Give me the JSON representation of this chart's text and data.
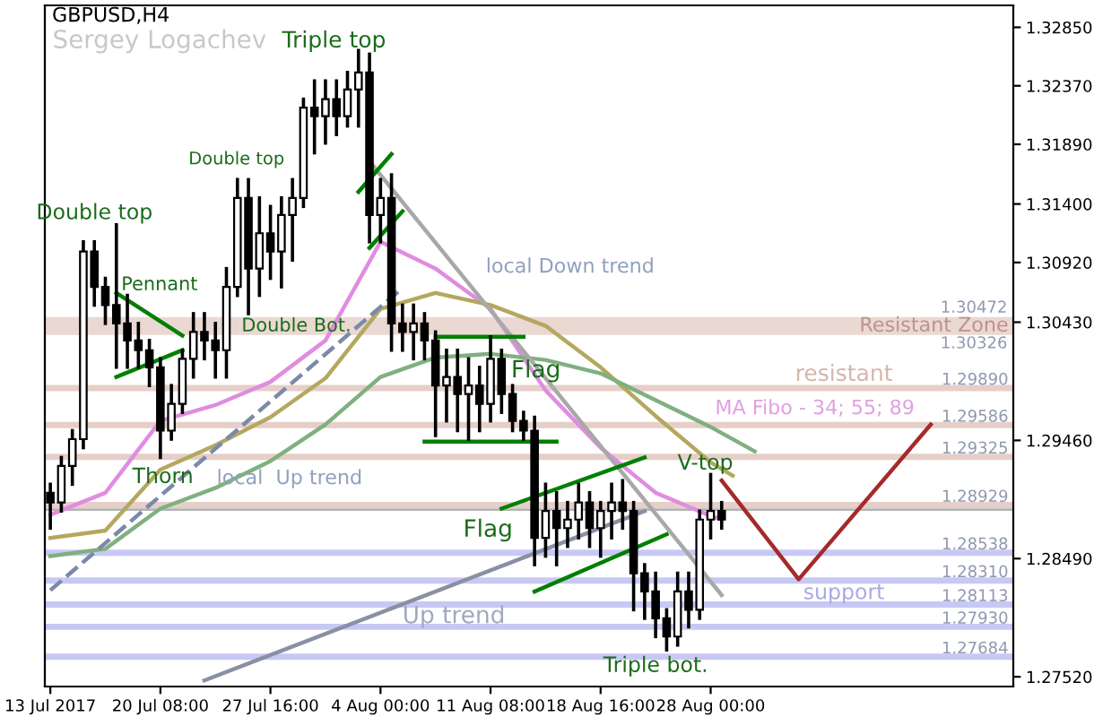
{
  "chart_data": {
    "type": "candlestick",
    "title": "GBPUSD,H4",
    "color": "#000000",
    "categories": [
      "13 Jul 2017",
      null,
      null,
      null,
      null,
      null,
      null,
      null,
      null,
      null,
      "20 Jul 08:00",
      null,
      null,
      null,
      null,
      null,
      null,
      null,
      null,
      null,
      "27 Jul 16:00",
      null,
      null,
      null,
      null,
      null,
      null,
      null,
      null,
      null,
      "4 Aug 00:00",
      null,
      null,
      null,
      null,
      null,
      null,
      null,
      null,
      null,
      "11 Aug 08:00",
      null,
      null,
      null,
      null,
      null,
      null,
      null,
      null,
      null,
      "18 Aug 16:00",
      null,
      null,
      null,
      null,
      null,
      null,
      null,
      null,
      null,
      "28 Aug 00:00",
      null,
      null,
      null,
      null,
      null,
      null,
      null,
      null,
      null,
      null,
      null,
      null,
      null,
      null,
      null,
      null,
      null,
      null,
      null,
      null,
      null,
      null,
      null,
      null,
      null,
      null,
      null
    ],
    "ohlc": [
      [
        1.2903,
        1.291,
        1.2874,
        1.2895
      ],
      [
        1.2895,
        1.2932,
        1.2888,
        1.2925
      ],
      [
        1.2925,
        1.2954,
        1.291,
        1.2947
      ],
      [
        1.2947,
        1.3109,
        1.294,
        1.3101
      ],
      [
        1.3101,
        1.3109,
        1.3057,
        1.3072
      ],
      [
        1.3072,
        1.3079,
        1.3042,
        1.3057
      ],
      [
        1.3057,
        1.3123,
        1.3006,
        1.3042
      ],
      [
        1.3042,
        1.3065,
        1.3006,
        1.3028
      ],
      [
        1.3028,
        1.3042,
        1.3006,
        1.302
      ],
      [
        1.302,
        1.3028,
        1.2991,
        1.3006
      ],
      [
        1.3006,
        1.3013,
        1.2932,
        1.2954
      ],
      [
        1.2954,
        1.2991,
        1.2947,
        1.2976
      ],
      [
        1.2976,
        1.302,
        1.2969,
        1.3013
      ],
      [
        1.3013,
        1.305,
        1.2998,
        1.3035
      ],
      [
        1.3035,
        1.305,
        1.3013,
        1.3028
      ],
      [
        1.3028,
        1.3042,
        1.2998,
        1.302
      ],
      [
        1.302,
        1.3087,
        1.2998,
        1.3072
      ],
      [
        1.3072,
        1.316,
        1.3065,
        1.3145
      ],
      [
        1.3145,
        1.316,
        1.305,
        1.3087
      ],
      [
        1.3087,
        1.3145,
        1.3065,
        1.3116
      ],
      [
        1.3116,
        1.3138,
        1.3079,
        1.3101
      ],
      [
        1.3101,
        1.3145,
        1.3072,
        1.3131
      ],
      [
        1.3131,
        1.316,
        1.3094,
        1.3145
      ],
      [
        1.3145,
        1.3226,
        1.3138,
        1.3219
      ],
      [
        1.3219,
        1.3241,
        1.3182,
        1.3212
      ],
      [
        1.3212,
        1.3241,
        1.319,
        1.3226
      ],
      [
        1.3226,
        1.3241,
        1.3197,
        1.3212
      ],
      [
        1.3212,
        1.3248,
        1.3204,
        1.3234
      ],
      [
        1.3234,
        1.3266,
        1.3204,
        1.3248
      ],
      [
        1.3248,
        1.3263,
        1.3109,
        1.3131
      ],
      [
        1.3131,
        1.316,
        1.3109,
        1.3145
      ],
      [
        1.3145,
        1.3164,
        1.302,
        1.3042
      ],
      [
        1.3042,
        1.3057,
        1.302,
        1.3035
      ],
      [
        1.3035,
        1.3057,
        1.3013,
        1.3042
      ],
      [
        1.3042,
        1.305,
        1.3013,
        1.3028
      ],
      [
        1.3028,
        1.3035,
        1.295,
        1.2991
      ],
      [
        1.2991,
        1.302,
        1.2962,
        1.2998
      ],
      [
        1.2998,
        1.302,
        1.2954,
        1.2984
      ],
      [
        1.2984,
        1.3013,
        1.2947,
        1.2991
      ],
      [
        1.2991,
        1.3006,
        1.2954,
        1.2976
      ],
      [
        1.2976,
        1.3031,
        1.2962,
        1.3013
      ],
      [
        1.3013,
        1.302,
        1.2969,
        1.2984
      ],
      [
        1.2984,
        1.2991,
        1.2954,
        1.2962
      ],
      [
        1.2962,
        1.2969,
        1.2947,
        1.2954
      ],
      [
        1.2954,
        1.2965,
        1.2844,
        1.2866
      ],
      [
        1.2866,
        1.291,
        1.2851,
        1.2888
      ],
      [
        1.2888,
        1.2903,
        1.2844,
        1.2874
      ],
      [
        1.2874,
        1.2895,
        1.2859,
        1.2881
      ],
      [
        1.2881,
        1.291,
        1.2866,
        1.2895
      ],
      [
        1.2895,
        1.2903,
        1.2859,
        1.2874
      ],
      [
        1.2874,
        1.2895,
        1.2851,
        1.2888
      ],
      [
        1.2888,
        1.291,
        1.2866,
        1.2895
      ],
      [
        1.2895,
        1.2913,
        1.2874,
        1.2888
      ],
      [
        1.2888,
        1.2895,
        1.2807,
        1.2837
      ],
      [
        1.2837,
        1.2844,
        1.28,
        1.2822
      ],
      [
        1.2822,
        1.2837,
        1.2785,
        1.28
      ],
      [
        1.28,
        1.2807,
        1.2774,
        1.2785
      ],
      [
        1.2785,
        1.2837,
        1.2778,
        1.2822
      ],
      [
        1.2822,
        1.2837,
        1.2793,
        1.2807
      ],
      [
        1.2807,
        1.2888,
        1.28,
        1.2881
      ],
      [
        1.2881,
        1.2918,
        1.2866,
        1.2888
      ],
      [
        1.2888,
        1.2895,
        1.2874,
        1.2881
      ],
      null,
      null,
      null,
      null,
      null,
      null,
      null,
      null,
      null,
      null,
      null,
      null,
      null,
      null,
      null,
      null,
      null,
      null,
      null,
      null,
      null,
      null,
      null,
      null,
      null,
      null
    ],
    "series": [
      {
        "type": "line",
        "color": "#e08ce0",
        "line_style": "solid",
        "values": [
          1.2885,
          null,
          null,
          null,
          null,
          1.2903,
          null,
          null,
          null,
          null,
          1.2962,
          null,
          null,
          null,
          null,
          1.2975,
          null,
          null,
          null,
          null,
          1.2994,
          null,
          null,
          null,
          null,
          1.3028,
          null,
          null,
          null,
          null,
          1.3109,
          null,
          null,
          null,
          null,
          1.3087,
          null,
          null,
          null,
          null,
          1.3054,
          null,
          null,
          null,
          null,
          1.2987,
          null,
          null,
          null,
          null,
          1.294,
          null,
          null,
          null,
          null,
          1.2903,
          null,
          null,
          null,
          null,
          1.2884,
          1.2881,
          null,
          null,
          null,
          null,
          null,
          null,
          null,
          null,
          null,
          null,
          null,
          null,
          null,
          null,
          null,
          null,
          null,
          null,
          null,
          null,
          null,
          null,
          null,
          null,
          null,
          null
        ]
      },
      {
        "type": "line",
        "color": "#b4a860",
        "line_style": "solid",
        "values": [
          1.2866,
          null,
          null,
          null,
          null,
          1.2872,
          null,
          null,
          null,
          null,
          1.2922,
          null,
          null,
          null,
          null,
          1.2942,
          null,
          null,
          null,
          null,
          1.2965,
          null,
          null,
          null,
          null,
          1.2997,
          null,
          null,
          null,
          null,
          1.3054,
          null,
          null,
          null,
          null,
          1.3067,
          null,
          null,
          null,
          null,
          1.3057,
          null,
          null,
          null,
          null,
          1.304,
          null,
          null,
          null,
          null,
          1.3006,
          null,
          null,
          null,
          null,
          1.2966,
          null,
          null,
          null,
          null,
          1.2928,
          null,
          1.2917,
          null,
          null,
          null,
          null,
          null,
          null,
          null,
          null,
          null,
          null,
          null,
          null,
          null,
          null,
          null,
          null,
          null,
          null,
          null,
          null,
          null,
          null,
          null,
          null,
          null
        ]
      },
      {
        "type": "line",
        "color": "#80b080",
        "line_style": "solid",
        "values": [
          1.2851,
          null,
          null,
          null,
          null,
          1.2857,
          null,
          null,
          null,
          null,
          1.289,
          null,
          null,
          null,
          null,
          1.2907,
          null,
          null,
          null,
          null,
          1.2929,
          null,
          null,
          null,
          null,
          1.2959,
          null,
          null,
          null,
          null,
          1.2998,
          null,
          null,
          null,
          null,
          1.3014,
          null,
          null,
          null,
          null,
          1.3017,
          null,
          null,
          null,
          null,
          1.3012,
          null,
          null,
          null,
          null,
          1.3001,
          null,
          null,
          null,
          null,
          1.2979,
          null,
          null,
          null,
          null,
          1.2957,
          null,
          null,
          null,
          1.2937,
          null,
          null,
          null,
          null,
          null,
          null,
          null,
          null,
          null,
          null,
          null,
          null,
          null,
          null,
          null,
          null,
          null,
          null,
          null,
          null,
          null,
          null,
          null
        ]
      },
      {
        "type": "line",
        "color": "#7a8aa8",
        "line_style": "dashed",
        "values": [
          1.2823,
          null,
          null,
          null,
          null,
          null,
          null,
          null,
          null,
          null,
          null,
          null,
          null,
          null,
          null,
          null,
          null,
          null,
          null,
          null,
          null,
          null,
          null,
          null,
          null,
          null,
          null,
          null,
          null,
          null,
          null,
          null,
          1.3071,
          null,
          null,
          null,
          null,
          null,
          null,
          null,
          null,
          null,
          null,
          null,
          null,
          null,
          null,
          null,
          null,
          null,
          null,
          null,
          null,
          null,
          null,
          null,
          null,
          null,
          null,
          null,
          null,
          null,
          null,
          null,
          null,
          null,
          null,
          null,
          null,
          null,
          null,
          null,
          null,
          null,
          null,
          null,
          null,
          null,
          null,
          null,
          null,
          null,
          null,
          null,
          null,
          null,
          null,
          null
        ]
      },
      {
        "type": "line",
        "color": "#a8a8a8",
        "line_style": "solid",
        "values": [
          null,
          null,
          null,
          null,
          null,
          null,
          null,
          null,
          null,
          null,
          null,
          null,
          null,
          null,
          null,
          null,
          null,
          null,
          null,
          null,
          null,
          null,
          null,
          null,
          null,
          null,
          null,
          null,
          null,
          1.3175,
          null,
          null,
          null,
          null,
          null,
          null,
          null,
          null,
          null,
          null,
          null,
          null,
          null,
          null,
          null,
          null,
          null,
          null,
          null,
          null,
          null,
          null,
          null,
          null,
          null,
          null,
          null,
          null,
          null,
          null,
          null,
          1.2819,
          null,
          null,
          null,
          null,
          null,
          null,
          null,
          null,
          null,
          null,
          null,
          null,
          null,
          null,
          null,
          null,
          null,
          null,
          null,
          null,
          null,
          null,
          null,
          null,
          null,
          null
        ]
      },
      {
        "type": "line",
        "color": "#8a90a4",
        "line_style": "solid",
        "values": [
          null,
          null,
          null,
          null,
          null,
          null,
          null,
          null,
          null,
          null,
          null,
          null,
          null,
          null,
          1.2749,
          null,
          null,
          null,
          null,
          null,
          null,
          null,
          null,
          null,
          null,
          null,
          null,
          null,
          null,
          null,
          null,
          null,
          null,
          null,
          null,
          null,
          null,
          null,
          null,
          null,
          null,
          null,
          null,
          null,
          null,
          null,
          null,
          null,
          null,
          null,
          null,
          null,
          null,
          null,
          1.2888,
          null,
          null,
          null,
          null,
          null,
          null,
          null,
          null,
          null,
          null,
          null,
          null,
          null,
          null,
          null,
          null,
          null,
          null,
          null,
          null,
          null,
          null,
          null,
          null,
          null,
          null,
          null,
          null,
          null,
          null,
          null,
          null,
          null
        ]
      },
      {
        "type": "line",
        "color": "#008000",
        "line_style": "solid",
        "values": [
          null,
          null,
          null,
          null,
          null,
          null,
          1.3067,
          null,
          null,
          null,
          null,
          null,
          1.3032,
          null,
          null,
          null,
          null,
          null,
          null,
          null,
          null,
          null,
          null,
          null,
          null,
          null,
          null,
          null,
          null,
          null,
          null,
          null,
          null,
          null,
          null,
          null,
          null,
          null,
          null,
          null,
          null,
          null,
          null,
          null,
          null,
          null,
          null,
          null,
          null,
          null,
          null,
          null,
          null,
          null,
          null,
          null,
          null,
          null,
          null,
          null,
          null,
          null,
          null,
          null,
          null,
          null,
          null,
          null,
          null,
          null,
          null,
          null,
          null,
          null,
          null,
          null,
          null,
          null,
          null,
          null,
          null,
          null,
          null,
          null,
          null,
          null,
          null,
          null
        ]
      },
      {
        "type": "line",
        "color": "#008000",
        "line_style": "solid",
        "values": [
          null,
          null,
          null,
          null,
          null,
          null,
          1.2998,
          null,
          null,
          null,
          null,
          null,
          1.302,
          null,
          null,
          null,
          null,
          null,
          null,
          null,
          null,
          null,
          null,
          null,
          null,
          null,
          null,
          null,
          null,
          null,
          null,
          null,
          null,
          null,
          null,
          null,
          null,
          null,
          null,
          null,
          null,
          null,
          null,
          null,
          null,
          null,
          null,
          null,
          null,
          null,
          null,
          null,
          null,
          null,
          null,
          null,
          null,
          null,
          null,
          null,
          null,
          null,
          null,
          null,
          null,
          null,
          null,
          null,
          null,
          null,
          null,
          null,
          null,
          null,
          null,
          null,
          null,
          null,
          null,
          null,
          null,
          null,
          null,
          null,
          null,
          null,
          null,
          null
        ]
      },
      {
        "type": "line",
        "color": "#008000",
        "line_style": "solid",
        "values": [
          null,
          null,
          null,
          null,
          null,
          null,
          null,
          null,
          null,
          null,
          null,
          null,
          null,
          null,
          null,
          null,
          null,
          null,
          null,
          null,
          null,
          null,
          null,
          null,
          null,
          null,
          null,
          null,
          1.315,
          null,
          null,
          1.3181,
          null,
          null,
          null,
          null,
          null,
          null,
          null,
          null,
          null,
          null,
          null,
          null,
          null,
          null,
          null,
          null,
          null,
          null,
          null,
          null,
          null,
          null,
          null,
          null,
          null,
          null,
          null,
          null,
          null,
          null,
          null,
          null,
          null,
          null,
          null,
          null,
          null,
          null,
          null,
          null,
          null,
          null,
          null,
          null,
          null,
          null,
          null,
          null,
          null,
          null,
          null,
          null,
          null,
          null,
          null,
          null
        ]
      },
      {
        "type": "line",
        "color": "#008000",
        "line_style": "solid",
        "values": [
          null,
          null,
          null,
          null,
          null,
          null,
          null,
          null,
          null,
          null,
          null,
          null,
          null,
          null,
          null,
          null,
          null,
          null,
          null,
          null,
          null,
          null,
          null,
          null,
          null,
          null,
          null,
          null,
          null,
          1.3104,
          null,
          null,
          1.3134,
          null,
          null,
          null,
          null,
          null,
          null,
          null,
          null,
          null,
          null,
          null,
          null,
          null,
          null,
          null,
          null,
          null,
          null,
          null,
          null,
          null,
          null,
          null,
          null,
          null,
          null,
          null,
          null,
          null,
          null,
          null,
          null,
          null,
          null,
          null,
          null,
          null,
          null,
          null,
          null,
          null,
          null,
          null,
          null,
          null,
          null,
          null,
          null,
          null,
          null,
          null,
          null,
          null,
          null,
          null
        ]
      },
      {
        "type": "line",
        "color": "#008000",
        "line_style": "solid",
        "values": [
          null,
          null,
          null,
          null,
          null,
          null,
          null,
          null,
          null,
          null,
          null,
          null,
          null,
          null,
          null,
          null,
          null,
          null,
          null,
          null,
          null,
          null,
          null,
          null,
          null,
          null,
          null,
          null,
          null,
          null,
          null,
          null,
          null,
          null,
          null,
          1.3031,
          null,
          null,
          null,
          null,
          null,
          null,
          null,
          1.3031,
          null,
          null,
          null,
          null,
          null,
          null,
          null,
          null,
          null,
          null,
          null,
          null,
          null,
          null,
          null,
          null,
          null,
          null,
          null,
          null,
          null,
          null,
          null,
          null,
          null,
          null,
          null,
          null,
          null,
          null,
          null,
          null,
          null,
          null,
          null,
          null,
          null,
          null,
          null,
          null,
          null,
          null,
          null,
          null
        ]
      },
      {
        "type": "line",
        "color": "#008000",
        "line_style": "solid",
        "values": [
          null,
          null,
          null,
          null,
          null,
          null,
          null,
          null,
          null,
          null,
          null,
          null,
          null,
          null,
          null,
          null,
          null,
          null,
          null,
          null,
          null,
          null,
          null,
          null,
          null,
          null,
          null,
          null,
          null,
          null,
          null,
          null,
          null,
          null,
          1.2945,
          null,
          null,
          null,
          null,
          null,
          null,
          null,
          null,
          null,
          null,
          null,
          1.2945,
          null,
          null,
          null,
          null,
          null,
          null,
          null,
          null,
          null,
          null,
          null,
          null,
          null,
          null,
          null,
          null,
          null,
          null,
          null,
          null,
          null,
          null,
          null,
          null,
          null,
          null,
          null,
          null,
          null,
          null,
          null,
          null,
          null,
          null,
          null,
          null,
          null,
          null,
          null,
          null,
          null
        ]
      },
      {
        "type": "line",
        "color": "#008000",
        "line_style": "solid",
        "values": [
          null,
          null,
          null,
          null,
          null,
          null,
          null,
          null,
          null,
          null,
          null,
          null,
          null,
          null,
          null,
          null,
          null,
          null,
          null,
          null,
          null,
          null,
          null,
          null,
          null,
          null,
          null,
          null,
          null,
          null,
          null,
          null,
          null,
          null,
          null,
          null,
          null,
          null,
          null,
          null,
          null,
          1.289,
          null,
          null,
          null,
          null,
          null,
          null,
          null,
          null,
          null,
          null,
          null,
          null,
          1.2932,
          null,
          null,
          null,
          null,
          null,
          null,
          null,
          null,
          null,
          null,
          null,
          null,
          null,
          null,
          null,
          null,
          null,
          null,
          null,
          null,
          null,
          null,
          null,
          null,
          null,
          null,
          null,
          null,
          null,
          null,
          null,
          null,
          null
        ]
      },
      {
        "type": "line",
        "color": "#008000",
        "line_style": "solid",
        "values": [
          null,
          null,
          null,
          null,
          null,
          null,
          null,
          null,
          null,
          null,
          null,
          null,
          null,
          null,
          null,
          null,
          null,
          null,
          null,
          null,
          null,
          null,
          null,
          null,
          null,
          null,
          null,
          null,
          null,
          null,
          null,
          null,
          null,
          null,
          null,
          null,
          null,
          null,
          null,
          null,
          null,
          null,
          null,
          null,
          1.2822,
          null,
          null,
          null,
          null,
          null,
          null,
          null,
          null,
          null,
          null,
          null,
          1.2869,
          null,
          null,
          null,
          null,
          null,
          null,
          null,
          null,
          null,
          null,
          null,
          null,
          null,
          null,
          null,
          null,
          null,
          null,
          null,
          null,
          null,
          null,
          null,
          null,
          null,
          null,
          null,
          null,
          null,
          null,
          null
        ]
      },
      {
        "type": "line",
        "color": "#a52a2a",
        "line_style": "solid",
        "values": [
          null,
          null,
          null,
          null,
          null,
          null,
          null,
          null,
          null,
          null,
          null,
          null,
          null,
          null,
          null,
          null,
          null,
          null,
          null,
          null,
          null,
          null,
          null,
          null,
          null,
          null,
          null,
          null,
          null,
          null,
          null,
          null,
          null,
          null,
          null,
          null,
          null,
          null,
          null,
          null,
          null,
          null,
          null,
          null,
          null,
          null,
          null,
          null,
          null,
          null,
          null,
          null,
          null,
          null,
          null,
          null,
          null,
          null,
          null,
          null,
          null,
          1.2913,
          null,
          null,
          null,
          null,
          null,
          null,
          1.2832,
          null,
          null,
          null,
          null,
          null,
          null,
          null,
          null,
          null,
          null,
          null,
          1.2959,
          null,
          null,
          null,
          null,
          null,
          null,
          null
        ]
      }
    ],
    "ylim": [
      1.2744,
      1.3303
    ],
    "yticks": [
      {
        "value": 1.2752,
        "label": "1.27520"
      },
      {
        "value": 1.2849,
        "label": "1.28490"
      },
      {
        "value": 1.2946,
        "label": "1.29460"
      },
      {
        "value": 1.3043,
        "label": "1.30430"
      },
      {
        "value": 1.3092,
        "label": "1.30920"
      },
      {
        "value": 1.314,
        "label": "1.31400"
      },
      {
        "value": 1.3189,
        "label": "1.31890"
      },
      {
        "value": 1.3237,
        "label": "1.32370"
      },
      {
        "value": 1.3285,
        "label": "1.32850"
      }
    ],
    "ref_lines": [
      {
        "axis": "y",
        "value": 1.2989,
        "label": "1.29890",
        "color": "#e6cfc8"
      },
      {
        "axis": "y",
        "value": 1.29586,
        "label": "1.29586",
        "color": "#e6cfc8"
      },
      {
        "axis": "y",
        "value": 1.29325,
        "label": "1.29325",
        "color": "#e6cfc8"
      },
      {
        "axis": "y",
        "value": 1.28929,
        "label": "1.28929",
        "color": "#e6cfc8"
      },
      {
        "axis": "y",
        "value": 1.28891,
        "color": "#b4b4b4"
      },
      {
        "axis": "y",
        "value": 1.28538,
        "label": "1.28538",
        "color": "#c8c8f4"
      },
      {
        "axis": "y",
        "value": 1.2831,
        "label": "1.28310",
        "color": "#c8c8f4"
      },
      {
        "axis": "y",
        "value": 1.28113,
        "label": "1.28113",
        "color": "#c8c8f4"
      },
      {
        "axis": "y",
        "value": 1.2793,
        "label": "1.27930",
        "color": "#c8c8f4"
      },
      {
        "axis": "y",
        "value": 1.27684,
        "label": "1.27684",
        "color": "#c8c8f4"
      }
    ],
    "bands": [
      {
        "axis": "y",
        "from": 1.30326,
        "to": 1.30472,
        "label": "Resistant Zone",
        "color": "#ead8d2"
      }
    ],
    "annotations": [
      "Sergey Logachev",
      "Triple top",
      "Double top",
      "Double top",
      "Pennant",
      "Double Bot.",
      "local Down trend",
      {
        "text": "Flag",
        "y": 1.3031
      },
      "MA Fibo - 34; 55; 89",
      "resistant",
      {
        "text": "V-top",
        "y": 1.2918
      },
      {
        "text": "Thorn",
        "y": 1.2932
      },
      "local  Up trend",
      {
        "text": "Flag",
        "y": 1.289
      },
      "support",
      "Up trend",
      {
        "text": "Triple bot.",
        "y": 1.2774
      },
      {
        "text": "1.30472",
        "y": 1.30472
      },
      {
        "text": "1.30326",
        "y": 1.30326
      }
    ]
  }
}
